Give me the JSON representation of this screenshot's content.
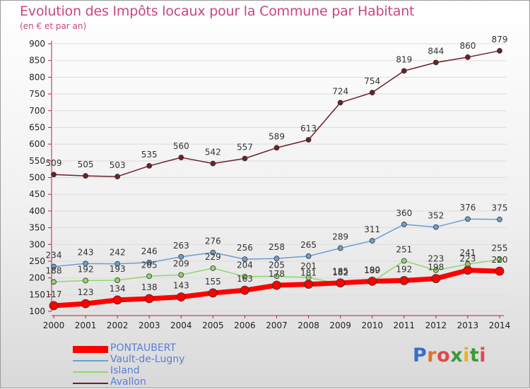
{
  "header": {
    "title": "Evolution des Impôts locaux pour la Commune par Habitant",
    "subtitle": "(en € et par an)"
  },
  "logo": {
    "text": "Proxiti"
  },
  "colors": {
    "title": "#c8457f",
    "legend_text": "#5b7dd8",
    "axis": "#c0203a"
  },
  "chart_data": {
    "type": "line",
    "title": "Evolution des Impôts locaux pour la Commune par Habitant",
    "subtitle": "(en € et par an)",
    "xlabel": "",
    "ylabel": "",
    "x": [
      "2000",
      "2001",
      "2002",
      "2003",
      "2004",
      "2005",
      "2006",
      "2007",
      "2008",
      "2009",
      "2010",
      "2011",
      "2012",
      "2013",
      "2014"
    ],
    "ylim": [
      100,
      900
    ],
    "yticks": [
      100,
      150,
      200,
      250,
      300,
      350,
      400,
      450,
      500,
      550,
      600,
      650,
      700,
      750,
      800,
      850,
      900
    ],
    "grid": true,
    "legend_position": "bottom-left",
    "series": [
      {
        "name": "Avallon",
        "color": "#6e1f2a",
        "width": 1.5,
        "marker": 3.5,
        "values": [
          509,
          505,
          503,
          535,
          560,
          542,
          557,
          589,
          613,
          724,
          754,
          819,
          844,
          860,
          879
        ],
        "labels": [
          "509",
          "505",
          "503",
          "535",
          "560",
          "542",
          "557",
          "589",
          "613",
          "724",
          "754",
          "819",
          "844",
          "860",
          "879"
        ]
      },
      {
        "name": "Vault-de-Lugny",
        "color": "#6a9fd0",
        "width": 1.5,
        "marker": 3.5,
        "values": [
          234,
          243,
          242,
          246,
          263,
          276,
          256,
          258,
          265,
          289,
          311,
          360,
          352,
          376,
          375
        ],
        "labels": [
          "234",
          "243",
          "242",
          "246",
          "263",
          "276",
          "256",
          "258",
          "265",
          "289",
          "311",
          "360",
          "352",
          "376",
          "375"
        ]
      },
      {
        "name": "Island",
        "color": "#8fd66a",
        "width": 1.5,
        "marker": 3.5,
        "values": [
          188,
          192,
          193,
          205,
          209,
          229,
          204,
          205,
          201,
          182,
          189,
          251,
          223,
          241,
          255
        ],
        "labels": [
          "188",
          "192",
          "193",
          "205",
          "209",
          "229",
          "204",
          "205",
          "201",
          "182",
          "189",
          "251",
          "223",
          "241",
          "255"
        ]
      },
      {
        "name": "PONTAUBERT",
        "color": "#ff0000",
        "width": 7,
        "marker": 6,
        "values": [
          117,
          123,
          134,
          138,
          143,
          155,
          163,
          178,
          181,
          185,
          190,
          192,
          198,
          223,
          220
        ],
        "labels": [
          "117",
          "123",
          "134",
          "138",
          "143",
          "155",
          "163",
          "178",
          "181",
          "185",
          "190",
          "192",
          "198",
          "223",
          "220"
        ]
      }
    ],
    "legend_order": [
      "PONTAUBERT",
      "Vault-de-Lugny",
      "Island",
      "Avallon"
    ]
  }
}
